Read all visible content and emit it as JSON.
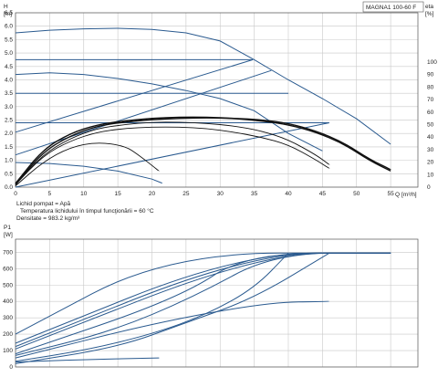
{
  "chart_data": [
    {
      "type": "line",
      "title": "MAGNA1 100-60 F",
      "ylabel": "H",
      "yunit": "[m]",
      "y2label": "eta",
      "y2unit": "[%]",
      "xlabel": "Q",
      "xunit": "[m³/h]",
      "xlim": [
        0,
        59
      ],
      "ylim": [
        0,
        6.5
      ],
      "y2lim": [
        0,
        100
      ],
      "xticks": [
        "0",
        "5",
        "10",
        "15",
        "20",
        "25",
        "30",
        "35",
        "40",
        "45",
        "50",
        "55"
      ],
      "yticks": [
        "0.0",
        "0.5",
        "1.0",
        "1.5",
        "2.0",
        "2.5",
        "3.0",
        "3.5",
        "4.0",
        "4.5",
        "5.0",
        "5.5",
        "6.0",
        "6.5"
      ],
      "y2ticks": [
        "0",
        "10",
        "20",
        "30",
        "40",
        "50",
        "60",
        "70",
        "80",
        "90",
        "100"
      ],
      "grid": true,
      "medium": [
        "Lichid pompat = Apă",
        "Temperatura lichidului în timpul funcţionării = 60  °C",
        "Densitate = 983.2  kg/m³"
      ],
      "pump_curves_H": [
        {
          "x": [
            0,
            5,
            10,
            15,
            20,
            25,
            30,
            35,
            40,
            45,
            50,
            55
          ],
          "y": [
            5.75,
            5.85,
            5.9,
            5.92,
            5.88,
            5.75,
            5.45,
            4.75,
            4.0,
            3.3,
            2.55,
            1.6
          ]
        },
        {
          "x": [
            0,
            34.8
          ],
          "y": [
            4.75,
            4.75
          ]
        },
        {
          "x": [
            0,
            5,
            10,
            15,
            20,
            25,
            30,
            35,
            40,
            45
          ],
          "y": [
            4.2,
            4.26,
            4.2,
            4.05,
            3.85,
            3.6,
            3.3,
            2.85,
            2.0,
            1.35
          ]
        },
        {
          "x": [
            0,
            40
          ],
          "y": [
            3.5,
            3.5
          ]
        },
        {
          "x": [
            0,
            46
          ],
          "y": [
            2.4,
            2.4
          ]
        },
        {
          "x": [
            0,
            5,
            10,
            15,
            20,
            21.5
          ],
          "y": [
            0.92,
            0.88,
            0.78,
            0.6,
            0.3,
            0.15
          ]
        }
      ],
      "system_curves": [
        {
          "x": [
            0,
            34.8
          ],
          "y": [
            2.05,
            4.75
          ]
        },
        {
          "x": [
            0,
            37.5
          ],
          "y": [
            1.2,
            4.35
          ]
        },
        {
          "x": [
            0,
            46
          ],
          "y": [
            0.0,
            2.4
          ]
        }
      ],
      "eta_curves": [
        {
          "x": [
            0,
            4,
            8,
            12,
            16,
            20,
            24,
            28,
            32,
            36,
            40,
            44,
            48,
            52,
            55
          ],
          "y": [
            3,
            30,
            43,
            50,
            53,
            55,
            56,
            56,
            55,
            54,
            51,
            45,
            36,
            22,
            14
          ]
        },
        {
          "x": [
            0,
            4,
            8,
            12,
            16,
            20,
            24,
            28,
            32,
            36,
            40,
            44,
            48,
            52,
            55
          ],
          "y": [
            2,
            28,
            41,
            49,
            52,
            54,
            55,
            55.5,
            55,
            53,
            50,
            44,
            35,
            21,
            13
          ]
        },
        {
          "x": [
            0,
            4,
            8,
            12,
            16,
            20,
            24,
            28,
            32,
            36,
            40,
            44,
            46
          ],
          "y": [
            2,
            26,
            39,
            47,
            50,
            52,
            52,
            51,
            49,
            45,
            38,
            26,
            18
          ]
        },
        {
          "x": [
            0,
            4,
            8,
            12,
            16,
            20,
            24,
            28,
            32,
            36,
            40,
            44,
            46
          ],
          "y": [
            2,
            25,
            37,
            44,
            47,
            48,
            48,
            47,
            44,
            40,
            34,
            22,
            15
          ]
        },
        {
          "x": [
            0,
            4,
            8,
            12,
            16,
            18,
            21
          ],
          "y": [
            1,
            20,
            32,
            36,
            33,
            26,
            13
          ]
        }
      ],
      "power_curves": [
        {
          "x": [
            0,
            22.5,
            55
          ],
          "y": [
            200,
            695,
            695
          ]
        },
        {
          "x": [
            0,
            33,
            55
          ],
          "y": [
            145,
            695,
            695
          ]
        },
        {
          "x": [
            0,
            34.5,
            55
          ],
          "y": [
            125,
            695,
            695
          ]
        },
        {
          "x": [
            0,
            36,
            55
          ],
          "y": [
            110,
            695,
            695
          ]
        },
        {
          "x": [
            0,
            24,
            34,
            55
          ],
          "y": [
            80,
            420,
            695,
            695
          ]
        },
        {
          "x": [
            0,
            14,
            26,
            38,
            55
          ],
          "y": [
            70,
            215,
            425,
            695,
            695
          ]
        },
        {
          "x": [
            0,
            20,
            37,
            46
          ],
          "y": [
            55,
            265,
            395,
            400
          ]
        },
        {
          "x": [
            0,
            10,
            20,
            28,
            35,
            40
          ],
          "y": [
            35,
            100,
            200,
            320,
            480,
            695
          ]
        },
        {
          "x": [
            0,
            15,
            25,
            35,
            46
          ],
          "y": [
            20,
            120,
            270,
            420,
            695
          ]
        },
        {
          "x": [
            0,
            10,
            21
          ],
          "y": [
            30,
            45,
            55
          ]
        }
      ]
    },
    {
      "type": "line",
      "ylabel": "P1",
      "yunit": "[W]",
      "xlim": [
        0,
        59
      ],
      "ylim": [
        0,
        780
      ],
      "yticks": [
        "0",
        "100",
        "200",
        "300",
        "400",
        "500",
        "600",
        "700"
      ],
      "grid": true
    }
  ],
  "colors": {
    "curve": "#2a5a8f",
    "eta": "#111111",
    "grid": "#c8c8c8"
  }
}
